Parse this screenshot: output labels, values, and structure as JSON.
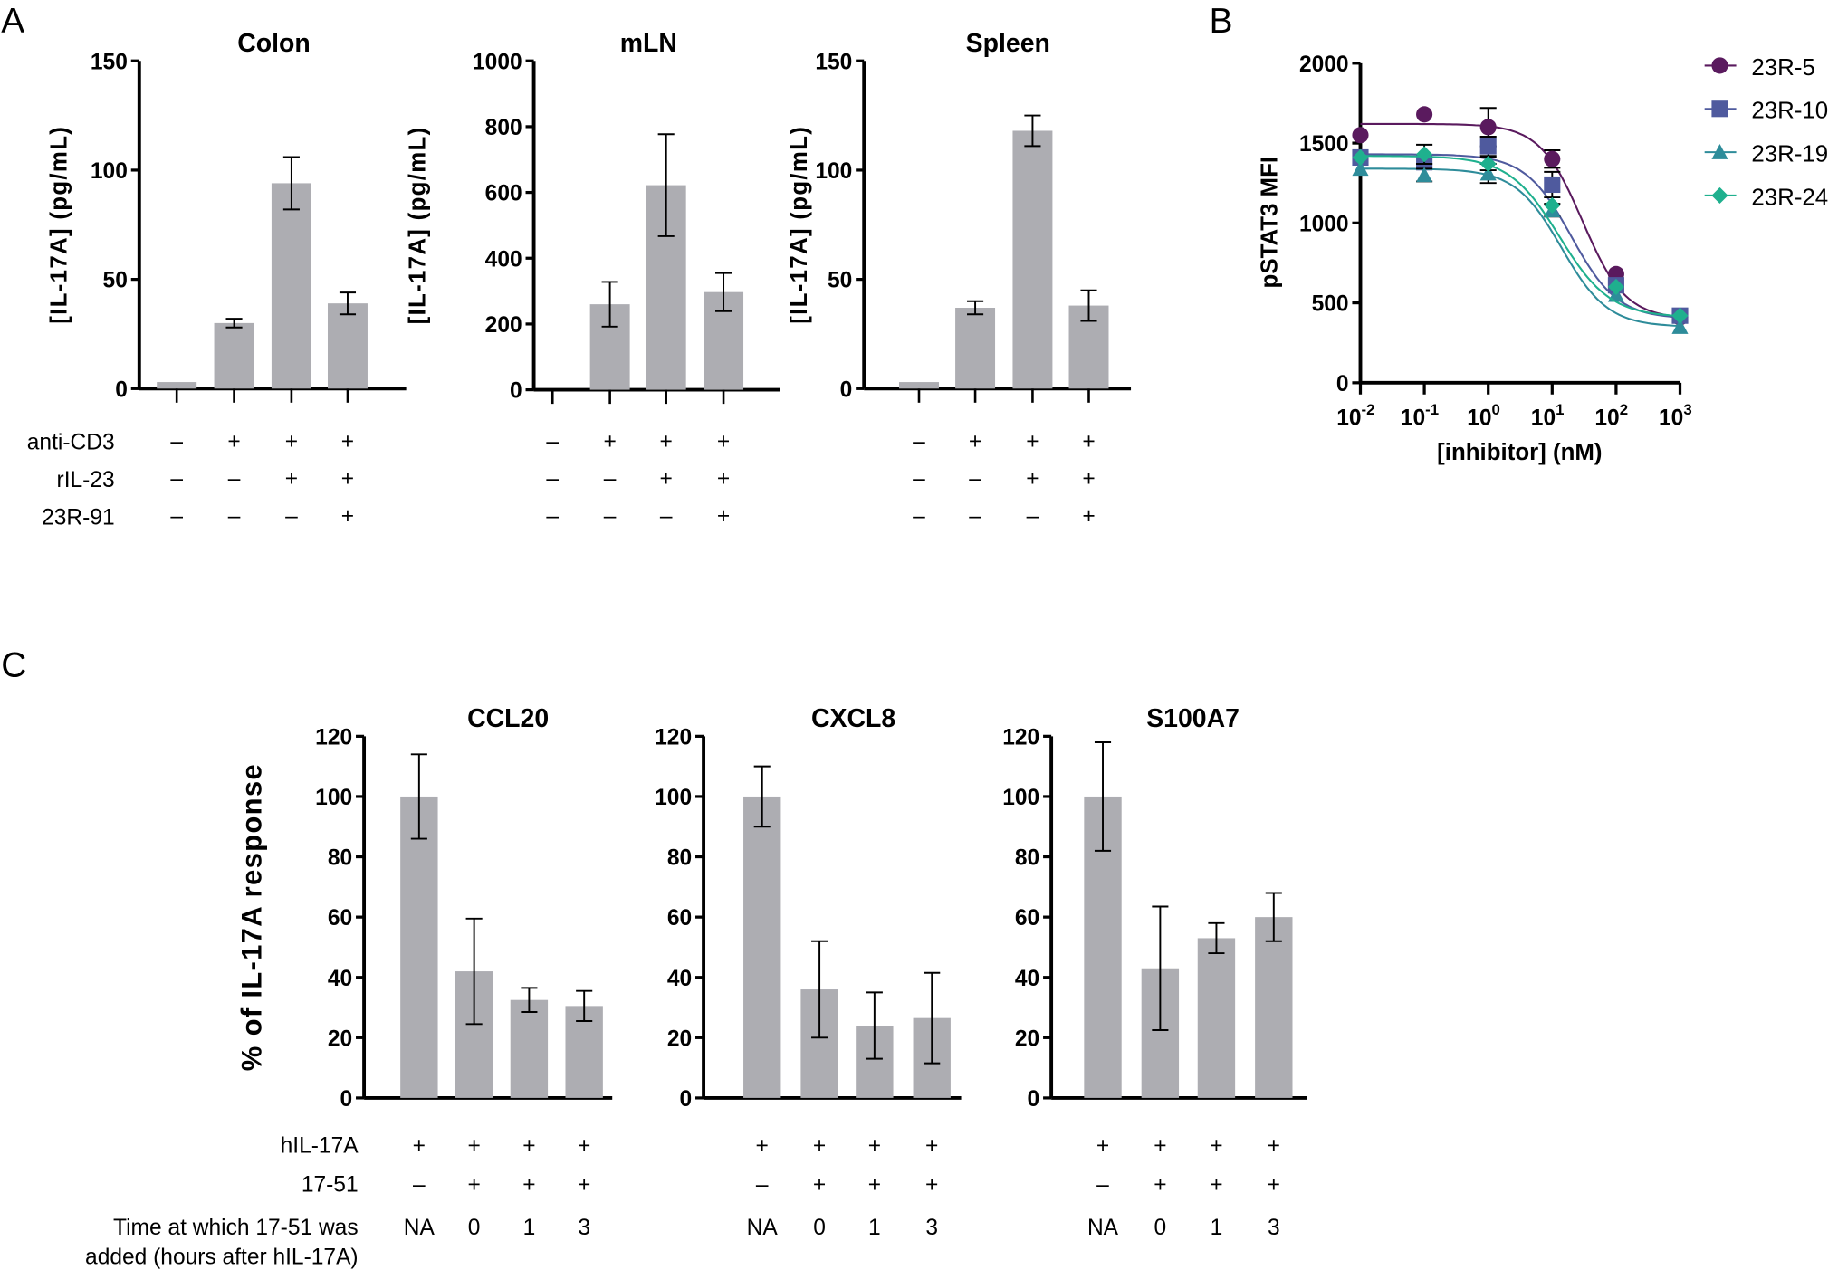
{
  "chart_data": [
    {
      "panel": "A",
      "type": "bar",
      "title": "Colon",
      "ylabel": "[IL-17A] (pg/mL)",
      "ylim": [
        0,
        150
      ],
      "yticks": [
        0,
        50,
        100,
        150
      ],
      "values": [
        3,
        30,
        94,
        39
      ],
      "errors": [
        0,
        2,
        12,
        5
      ]
    },
    {
      "panel": "",
      "type": "bar",
      "title": "mLN",
      "ylabel": "[IL-17A] (pg/mL)",
      "ylim": [
        0,
        1000
      ],
      "yticks": [
        0,
        200,
        400,
        600,
        800,
        1000
      ],
      "values": [
        0,
        260,
        622,
        297
      ],
      "errors": [
        0,
        68,
        155,
        58
      ]
    },
    {
      "panel": "",
      "type": "bar",
      "title": "Spleen",
      "ylabel": "[IL-17A] (pg/mL)",
      "ylim": [
        0,
        150
      ],
      "yticks": [
        0,
        50,
        100,
        150
      ],
      "values": [
        3,
        37,
        118,
        38
      ],
      "errors": [
        0,
        3,
        7,
        7
      ]
    },
    {
      "panel": "B",
      "type": "scatter",
      "title": "",
      "xlabel": "[inhibitor] (nM)",
      "ylabel": "pSTAT3 MFI",
      "xscale": "log",
      "x": [
        0.01,
        0.1,
        1,
        10,
        100,
        1000
      ],
      "xticks": [
        "-2",
        "-1",
        "0",
        "1",
        "2",
        "3"
      ],
      "ylim": [
        0,
        2000
      ],
      "yticks": [
        0,
        500,
        1000,
        1500,
        2000
      ],
      "legend": "top-right",
      "series": [
        {
          "name": "23R-5",
          "color": "#5a1a5e",
          "marker": "circle",
          "values": [
            1550,
            1680,
            1600,
            1400,
            680,
            410
          ],
          "errors": [
            0,
            0,
            120,
            55,
            0,
            0
          ],
          "fit": {
            "top": 1620,
            "bottom": 400,
            "ic50": 30,
            "hill": 1.3
          }
        },
        {
          "name": "23R-10",
          "color": "#4f5a9e",
          "marker": "square",
          "values": [
            1410,
            1380,
            1480,
            1240,
            610,
            420
          ],
          "errors": [
            0,
            0,
            60,
            80,
            0,
            0
          ],
          "fit": {
            "top": 1430,
            "bottom": 400,
            "ic50": 20,
            "hill": 1.2
          }
        },
        {
          "name": "23R-19",
          "color": "#2e8c9a",
          "marker": "triangle",
          "values": [
            1340,
            1300,
            1310,
            1080,
            550,
            350
          ],
          "errors": [
            0,
            40,
            60,
            40,
            0,
            0
          ],
          "fit": {
            "top": 1340,
            "bottom": 350,
            "ic50": 14,
            "hill": 1.2
          }
        },
        {
          "name": "23R-24",
          "color": "#1fb08e",
          "marker": "diamond",
          "values": [
            1410,
            1430,
            1370,
            1110,
            600,
            420
          ],
          "errors": [
            0,
            60,
            40,
            0,
            0,
            0
          ],
          "fit": {
            "top": 1420,
            "bottom": 410,
            "ic50": 13,
            "hill": 1.1
          }
        }
      ]
    },
    {
      "panel": "C",
      "type": "bar",
      "title": "CCL20",
      "ylabel": "% of IL-17A response",
      "ylim": [
        0,
        120
      ],
      "yticks": [
        0,
        20,
        40,
        60,
        80,
        100,
        120
      ],
      "values": [
        100,
        42,
        32.5,
        30.5
      ],
      "errors": [
        14,
        17.5,
        4,
        5
      ]
    },
    {
      "panel": "",
      "type": "bar",
      "title": "CXCL8",
      "ylabel": "",
      "ylim": [
        0,
        120
      ],
      "yticks": [
        0,
        20,
        40,
        60,
        80,
        100,
        120
      ],
      "values": [
        100,
        36,
        24,
        26.5
      ],
      "errors": [
        10,
        16,
        11,
        15
      ]
    },
    {
      "panel": "",
      "type": "bar",
      "title": "S100A7",
      "ylabel": "",
      "ylim": [
        0,
        120
      ],
      "yticks": [
        0,
        20,
        40,
        60,
        80,
        100,
        120
      ],
      "values": [
        100,
        43,
        53,
        60
      ],
      "errors": [
        18,
        20.5,
        5,
        8
      ]
    }
  ],
  "conditions_A": {
    "rows": [
      {
        "label": "anti-CD3",
        "marks": [
          "–",
          "+",
          "+",
          "+"
        ]
      },
      {
        "label": "rIL-23",
        "marks": [
          "–",
          "–",
          "+",
          "+"
        ]
      },
      {
        "label": "23R-91",
        "marks": [
          "–",
          "–",
          "–",
          "+"
        ]
      }
    ]
  },
  "conditions_C": {
    "rows": [
      {
        "label": "hIL-17A",
        "marks": [
          "+",
          "+",
          "+",
          "+"
        ]
      },
      {
        "label": "17-51",
        "marks": [
          "–",
          "+",
          "+",
          "+"
        ]
      },
      {
        "label": "Time at which 17-51 was",
        "label2": "added (hours after hIL-17A)",
        "marks": [
          "NA",
          "0",
          "1",
          "3"
        ]
      }
    ]
  },
  "colors": {
    "bar": "#adadb2",
    "axis": "#000000"
  }
}
